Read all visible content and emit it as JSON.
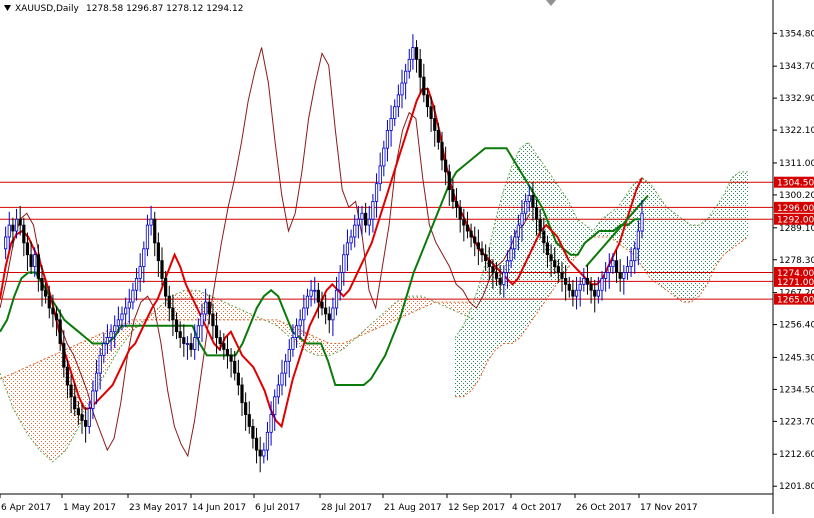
{
  "header": {
    "symbol_label": "XAUUSD,Daily",
    "ohlc_label": "1278.58 1296.87 1278.12 1294.12"
  },
  "chart_data": {
    "type": "candlestick",
    "title": "XAUUSD,Daily",
    "ohlc": {
      "open": 1278.58,
      "high": 1296.87,
      "low": 1278.12,
      "close": 1294.12
    },
    "ylim": [
      1199.5,
      1362.0
    ],
    "y_ticks": [
      "1354.80",
      "1343.70",
      "1332.90",
      "1322.10",
      "1311.00",
      "1300.20",
      "1289.10",
      "1278.30",
      "1267.20",
      "1256.40",
      "1245.30",
      "1234.50",
      "1223.70",
      "1212.60",
      "1201.80"
    ],
    "x_ticks": [
      "6 Apr 2017",
      "1 May 2017",
      "23 May 2017",
      "14 Jun 2017",
      "6 Jul 2017",
      "28 Jul 2017",
      "21 Aug 2017",
      "12 Sep 2017",
      "4 Oct 2017",
      "26 Oct 2017",
      "17 Nov 2017"
    ],
    "grid": false,
    "levels": [
      {
        "price": 1304.5,
        "label": "1304.50"
      },
      {
        "price": 1296.0,
        "label": "1296.00"
      },
      {
        "price": 1292.0,
        "label": "1292.00"
      },
      {
        "price": 1274.0,
        "label": "1274.00"
      },
      {
        "price": 1271.0,
        "label": "1271.00"
      },
      {
        "price": 1265.0,
        "label": "1265.00"
      }
    ],
    "candles_close": [
      1282,
      1286,
      1290,
      1288,
      1292,
      1290,
      1284,
      1280,
      1276,
      1280,
      1272,
      1268,
      1266,
      1262,
      1260,
      1258,
      1250,
      1242,
      1236,
      1232,
      1228,
      1226,
      1224,
      1222,
      1228,
      1234,
      1240,
      1246,
      1250,
      1252,
      1254,
      1256,
      1258,
      1260,
      1262,
      1264,
      1268,
      1272,
      1276,
      1282,
      1290,
      1292,
      1284,
      1278,
      1272,
      1266,
      1262,
      1258,
      1254,
      1252,
      1250,
      1250,
      1248,
      1252,
      1256,
      1260,
      1264,
      1260,
      1256,
      1252,
      1250,
      1248,
      1246,
      1244,
      1240,
      1236,
      1230,
      1226,
      1222,
      1218,
      1214,
      1212,
      1214,
      1220,
      1226,
      1232,
      1236,
      1240,
      1244,
      1248,
      1252,
      1256,
      1258,
      1262,
      1266,
      1268,
      1268,
      1264,
      1262,
      1260,
      1258,
      1262,
      1268,
      1274,
      1280,
      1284,
      1286,
      1290,
      1292,
      1294,
      1290,
      1292,
      1298,
      1304,
      1310,
      1316,
      1322,
      1326,
      1330,
      1334,
      1338,
      1342,
      1346,
      1350,
      1346,
      1340,
      1334,
      1330,
      1326,
      1322,
      1318,
      1312,
      1308,
      1302,
      1298,
      1296,
      1292,
      1290,
      1288,
      1286,
      1284,
      1282,
      1280,
      1278,
      1276,
      1274,
      1272,
      1270,
      1274,
      1278,
      1282,
      1286,
      1290,
      1294,
      1298,
      1300,
      1296,
      1292,
      1288,
      1284,
      1280,
      1278,
      1276,
      1274,
      1272,
      1270,
      1268,
      1266,
      1268,
      1270,
      1272,
      1270,
      1268,
      1266,
      1268,
      1272,
      1274,
      1276,
      1278,
      1274,
      1272,
      1274,
      1276,
      1278,
      1282,
      1288,
      1294
    ],
    "tenkan": [
      1265,
      1276,
      1284,
      1287,
      1288,
      1286,
      1282,
      1278,
      1272,
      1266,
      1258,
      1250,
      1244,
      1238,
      1232,
      1228,
      1228,
      1230,
      1232,
      1234,
      1236,
      1240,
      1244,
      1248,
      1250,
      1254,
      1258,
      1262,
      1265,
      1270,
      1275,
      1280,
      1276,
      1270,
      1266,
      1262,
      1258,
      1254,
      1250,
      1248,
      1252,
      1254,
      1250,
      1246,
      1244,
      1242,
      1238,
      1234,
      1228,
      1224,
      1222,
      1230,
      1238,
      1244,
      1250,
      1256,
      1260,
      1264,
      1268,
      1270,
      1268,
      1266,
      1268,
      1272,
      1276,
      1280,
      1284,
      1290,
      1296,
      1302,
      1308,
      1314,
      1320,
      1326,
      1332,
      1336,
      1336,
      1330,
      1322,
      1312,
      1304,
      1298,
      1294,
      1290,
      1286,
      1282,
      1280,
      1278,
      1276,
      1274,
      1272,
      1270,
      1272,
      1276,
      1280,
      1284,
      1288,
      1290,
      1288,
      1286,
      1282,
      1278,
      1276,
      1274,
      1272,
      1270,
      1270,
      1272,
      1276,
      1280,
      1284,
      1290,
      1296,
      1302,
      1306
    ],
    "kijun": [
      1254,
      1258,
      1266,
      1272,
      1274,
      1274,
      1270,
      1266,
      1262,
      1258,
      1256,
      1254,
      1252,
      1250,
      1250,
      1250,
      1252,
      1256,
      1256,
      1256,
      1256,
      1256,
      1256,
      1256,
      1256,
      1256,
      1256,
      1256,
      1250,
      1246,
      1246,
      1246,
      1246,
      1246,
      1250,
      1256,
      1262,
      1266,
      1268,
      1266,
      1260,
      1254,
      1252,
      1250,
      1250,
      1250,
      1244,
      1236,
      1236,
      1236,
      1236,
      1236,
      1238,
      1242,
      1246,
      1252,
      1258,
      1266,
      1274,
      1280,
      1286,
      1292,
      1298,
      1304,
      1308,
      1310,
      1312,
      1314,
      1316,
      1316,
      1316,
      1316,
      1312,
      1308,
      1304,
      1300,
      1296,
      1290,
      1284,
      1282,
      1280,
      1280,
      1284,
      1286,
      1288,
      1288,
      1288,
      1290,
      1290,
      1292,
      1292
    ],
    "cloud_left": {
      "span_a": [
        1240,
        1228,
        1220,
        1214,
        1210,
        1214,
        1222,
        1232,
        1240,
        1248,
        1254,
        1258,
        1262,
        1266,
        1268,
        1268,
        1266,
        1264,
        1262,
        1260,
        1258,
        1256,
        1252,
        1248,
        1246,
        1246,
        1248,
        1252,
        1256,
        1260,
        1264,
        1266,
        1266,
        1264,
        1262,
        1260,
        1258
      ],
      "span_b": [
        1238,
        1240,
        1242,
        1244,
        1246,
        1248,
        1250,
        1252,
        1254,
        1256,
        1258,
        1258,
        1258,
        1258,
        1258,
        1258,
        1258,
        1258,
        1258,
        1258,
        1258,
        1258,
        1256,
        1254,
        1252,
        1250,
        1250,
        1252,
        1254,
        1256,
        1258,
        1260,
        1262,
        1264,
        1264,
        1264,
        1264
      ]
    },
    "cloud_right": {
      "span_a": [
        1252,
        1256,
        1262,
        1270,
        1280,
        1292,
        1302,
        1310,
        1316,
        1318,
        1314,
        1310,
        1306,
        1302,
        1298,
        1292,
        1290,
        1288,
        1292,
        1294,
        1296,
        1300,
        1304,
        1306,
        1304,
        1300,
        1296,
        1294,
        1292,
        1290,
        1290,
        1292,
        1296,
        1300,
        1306,
        1308,
        1308
      ],
      "span_b": [
        1232,
        1232,
        1234,
        1238,
        1244,
        1248,
        1250,
        1250,
        1252,
        1256,
        1260,
        1264,
        1268,
        1272,
        1276,
        1280,
        1284,
        1286,
        1286,
        1286,
        1284,
        1282,
        1280,
        1276,
        1272,
        1270,
        1268,
        1266,
        1264,
        1264,
        1266,
        1270,
        1276,
        1280,
        1282,
        1284,
        1286
      ]
    },
    "chikou": [
      1262,
      1272,
      1284,
      1292,
      1294,
      1290,
      1278,
      1268,
      1262,
      1256,
      1250,
      1246,
      1240,
      1234,
      1226,
      1220,
      1214,
      1218,
      1230,
      1246,
      1258,
      1264,
      1266,
      1262,
      1250,
      1234,
      1222,
      1216,
      1212,
      1224,
      1240,
      1256,
      1270,
      1284,
      1296,
      1306,
      1318,
      1332,
      1342,
      1350,
      1338,
      1318,
      1300,
      1288,
      1294,
      1308,
      1326,
      1338,
      1348,
      1344,
      1322,
      1302,
      1296,
      1298,
      1286,
      1268,
      1262,
      1276,
      1290,
      1310,
      1322,
      1328,
      1326,
      1306,
      1290,
      1284,
      1280,
      1276,
      1270,
      1268,
      1264,
      1262,
      1266,
      1272,
      1276,
      1278,
      1282,
      1288,
      1290,
      1294
    ],
    "trendline": {
      "from": 1276,
      "to": 1300
    }
  }
}
